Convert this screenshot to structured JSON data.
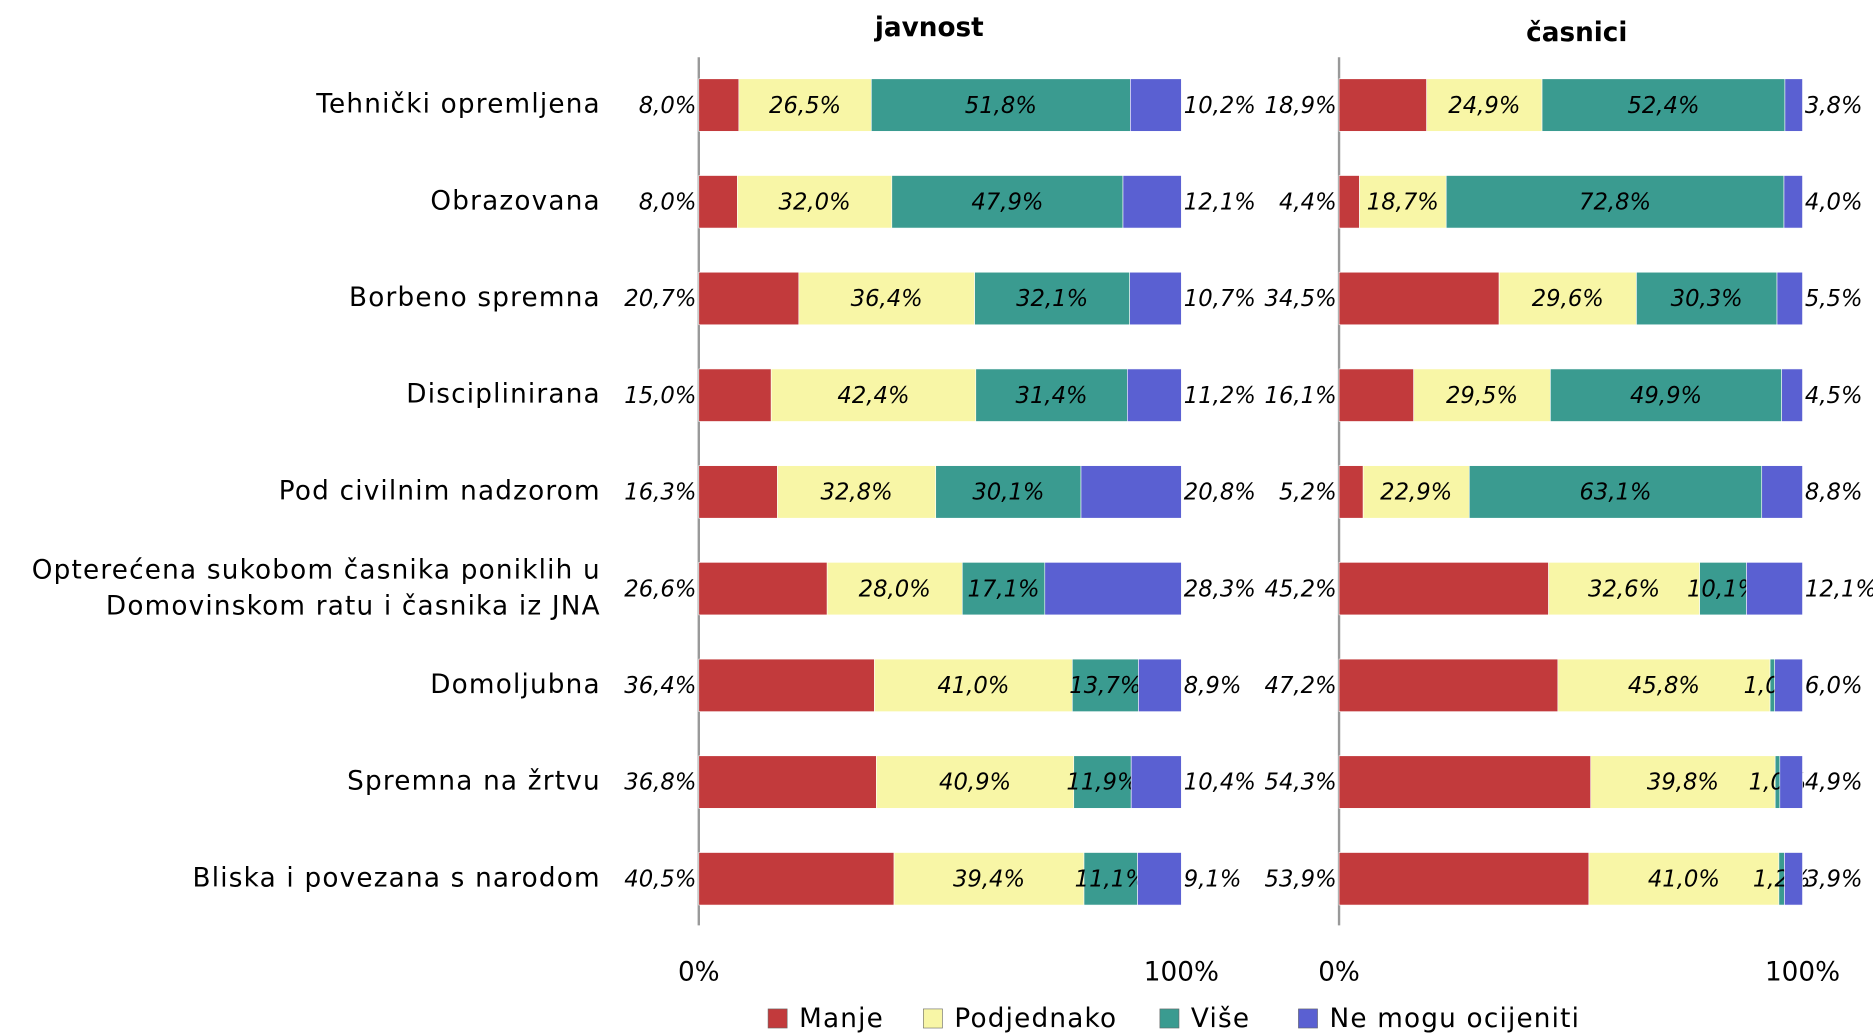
{
  "chart_data": [
    {
      "type": "bar",
      "title": "javnost",
      "orientation": "horizontal",
      "stacking": "percent",
      "categories": [
        "Tehnički opremljena",
        "Obrazovana",
        "Borbeno spremna",
        "Disciplinirana",
        "Pod civilnim  nadzorom",
        "Opterećena sukobom časnika poniklih u\nDomovinskom ratu i časnika iz JNA",
        "Domoljubna",
        "Spremna na žrtvu",
        "Bliska i povezana s narodom"
      ],
      "series": [
        {
          "name": "Manje",
          "color": "#c23a3c",
          "values": [
            8.0,
            8.0,
            20.7,
            15.0,
            16.3,
            26.6,
            36.4,
            36.8,
            40.5
          ],
          "value_labels": [
            "8,0%",
            "8,0%",
            "20,7%",
            "15,0%",
            "16,3%",
            "26,6%",
            "36,4%",
            "36,8%",
            "40,5%"
          ]
        },
        {
          "name": "Podjednako",
          "color": "#f8f6a6",
          "values": [
            26.5,
            32.0,
            36.4,
            42.4,
            32.8,
            28.0,
            41.0,
            40.9,
            39.4
          ],
          "value_labels": [
            "26,5%",
            "32,0%",
            "36,4%",
            "42,4%",
            "32,8%",
            "28,0%",
            "41,0%",
            "40,9%",
            "39,4%"
          ]
        },
        {
          "name": "Više",
          "color": "#3a9b90",
          "values": [
            51.8,
            47.9,
            32.1,
            31.4,
            30.1,
            17.1,
            13.7,
            11.9,
            11.1
          ],
          "value_labels": [
            "51,8%",
            "47,9%",
            "32,1%",
            "31,4%",
            "30,1%",
            "17,1%",
            "13,7%",
            "11,9%",
            "11,1%"
          ]
        },
        {
          "name": "Ne mogu ocijeniti",
          "color": "#5a60d2",
          "values": [
            10.2,
            12.1,
            10.7,
            11.2,
            20.8,
            28.3,
            8.9,
            10.4,
            9.1
          ],
          "value_labels": [
            "10,2%",
            "12,1%",
            "10,7%",
            "11,2%",
            "20,8%",
            "28,3%",
            "8,9%",
            "10,4%",
            "9,1%"
          ]
        }
      ],
      "xlim": [
        0,
        100
      ],
      "xticks": [
        {
          "value": 0,
          "label": "0%"
        },
        {
          "value": 100,
          "label": "100%"
        }
      ]
    },
    {
      "type": "bar",
      "title": "časnici",
      "orientation": "horizontal",
      "stacking": "percent",
      "series": [
        {
          "name": "Manje",
          "color": "#c23a3c",
          "values": [
            18.9,
            4.4,
            34.5,
            16.1,
            5.2,
            45.2,
            47.2,
            54.3,
            53.9
          ],
          "value_labels": [
            "18,9%",
            "4,4%",
            "34,5%",
            "16,1%",
            "5,2%",
            "45,2%",
            "47,2%",
            "54,3%",
            "53,9%"
          ]
        },
        {
          "name": "Podjednako",
          "color": "#f8f6a6",
          "values": [
            24.9,
            18.7,
            29.6,
            29.5,
            22.9,
            32.6,
            45.8,
            39.8,
            41.0
          ],
          "value_labels": [
            "24,9%",
            "18,7%",
            "29,6%",
            "29,5%",
            "22,9%",
            "32,6%",
            "45,8%",
            "39,8%",
            "41,0%"
          ]
        },
        {
          "name": "Više",
          "color": "#3a9b90",
          "values": [
            52.4,
            72.8,
            30.3,
            49.9,
            63.1,
            10.1,
            1.0,
            1.0,
            1.2
          ],
          "value_labels": [
            "52,4%",
            "72,8%",
            "30,3%",
            "49,9%",
            "63,1%",
            "10,1%",
            "1,0%",
            "1,0%",
            "1,2%"
          ]
        },
        {
          "name": "Ne mogu ocijeniti",
          "color": "#5a60d2",
          "values": [
            3.8,
            4.0,
            5.5,
            4.5,
            8.8,
            12.1,
            6.0,
            4.9,
            3.9
          ],
          "value_labels": [
            "3,8%",
            "4,0%",
            "5,5%",
            "4,5%",
            "8,8%",
            "12,1%",
            "6,0%",
            "4,9%",
            "3,9%"
          ]
        }
      ],
      "xlim": [
        0,
        100
      ],
      "xticks": [
        {
          "value": 0,
          "label": "0%"
        },
        {
          "value": 100,
          "label": "100%"
        }
      ]
    }
  ]
}
